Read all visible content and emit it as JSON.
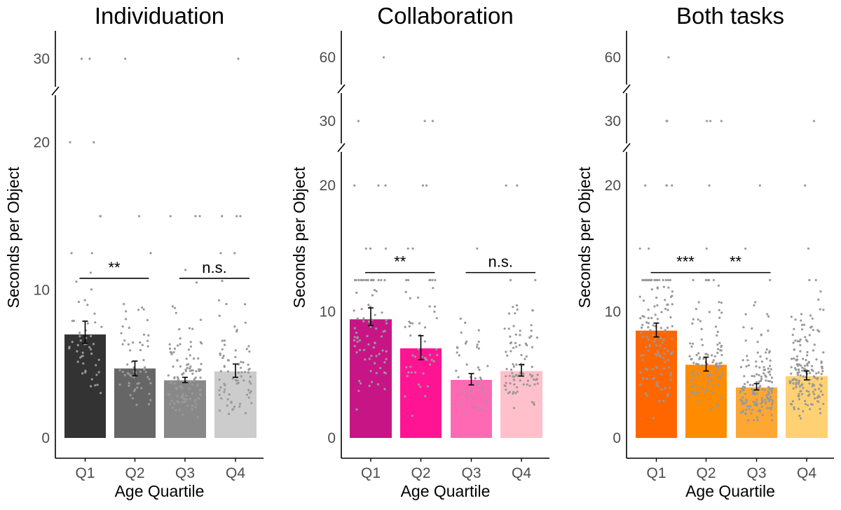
{
  "chart_data": [
    {
      "type": "bar",
      "title": "Individuation",
      "xlabel": "Age Quartile",
      "ylabel": "Seconds per Object",
      "categories": [
        "Q1",
        "Q2",
        "Q3",
        "Q4"
      ],
      "values": [
        7.0,
        4.7,
        3.9,
        4.5
      ],
      "error_low": [
        6.4,
        4.2,
        3.75,
        4.1
      ],
      "error_high": [
        7.9,
        5.2,
        4.1,
        5.0
      ],
      "colors": [
        "#333333",
        "#666666",
        "#888888",
        "#cccccc"
      ],
      "y_ticks": [
        "0",
        "10",
        "20",
        "30"
      ],
      "axis_break": {
        "lower_range": [
          0,
          23
        ],
        "upper_values": [
          30
        ]
      },
      "significance": [
        {
          "from": "Q1",
          "to": "Q2",
          "label": "**",
          "y": 10.8
        },
        {
          "from": "Q3",
          "to": "Q4",
          "label": "n.s.",
          "y": 10.8
        }
      ],
      "outliers": [
        [
          1,
          30
        ],
        [
          1,
          30
        ],
        [
          1,
          20
        ],
        [
          1,
          20
        ],
        [
          2,
          30
        ],
        [
          1,
          15
        ],
        [
          1,
          15
        ],
        [
          2,
          15
        ],
        [
          3,
          15
        ],
        [
          3,
          15
        ],
        [
          3,
          15
        ],
        [
          4,
          15
        ],
        [
          4,
          15
        ],
        [
          4,
          15
        ],
        [
          4,
          30
        ]
      ],
      "points_per_group": [
        50,
        60,
        120,
        80
      ]
    },
    {
      "type": "bar",
      "title": "Collaboration",
      "xlabel": "Age Quartile",
      "ylabel": "Seconds per Object",
      "categories": [
        "Q1",
        "Q2",
        "Q3",
        "Q4"
      ],
      "values": [
        9.4,
        7.1,
        4.6,
        5.3
      ],
      "error_low": [
        8.9,
        6.2,
        4.2,
        4.9
      ],
      "error_high": [
        10.3,
        8.1,
        5.1,
        5.8
      ],
      "colors": [
        "#c71585",
        "#ff1493",
        "#ff69b4",
        "#ffc0cb"
      ],
      "y_ticks": [
        "0",
        "10",
        "20",
        "30",
        "60"
      ],
      "axis_break": {
        "lower_range": [
          0,
          22.5
        ],
        "upper_values": [
          30,
          60
        ]
      },
      "significance": [
        {
          "from": "Q1",
          "to": "Q2",
          "label": "**",
          "y": 13.1
        },
        {
          "from": "Q3",
          "to": "Q4",
          "label": "n.s.",
          "y": 13.1
        }
      ],
      "outliers": [
        [
          1,
          60
        ],
        [
          1,
          30
        ],
        [
          2,
          30
        ],
        [
          2,
          30
        ],
        [
          1,
          20
        ],
        [
          1,
          20
        ],
        [
          1,
          20
        ],
        [
          2,
          20
        ],
        [
          2,
          20
        ],
        [
          4,
          20
        ],
        [
          4,
          20
        ],
        [
          1,
          15
        ],
        [
          1,
          15
        ],
        [
          1,
          15
        ],
        [
          2,
          15
        ],
        [
          2,
          15
        ],
        [
          3,
          15
        ]
      ],
      "points_per_group": [
        80,
        50,
        40,
        90
      ]
    },
    {
      "type": "bar",
      "title": "Both tasks",
      "xlabel": "Age Quartile",
      "ylabel": "Seconds per Object",
      "categories": [
        "Q1",
        "Q2",
        "Q3",
        "Q4"
      ],
      "values": [
        8.5,
        5.8,
        4.0,
        4.9
      ],
      "error_low": [
        8.0,
        5.3,
        3.8,
        4.6
      ],
      "error_high": [
        9.1,
        6.4,
        4.3,
        5.3
      ],
      "colors": [
        "#ff6600",
        "#ff8c00",
        "#ffa733",
        "#ffd173"
      ],
      "y_ticks": [
        "0",
        "10",
        "20",
        "30",
        "60"
      ],
      "axis_break": {
        "lower_range": [
          0,
          22.5
        ],
        "upper_values": [
          30,
          60
        ]
      },
      "significance": [
        {
          "from": "Q1",
          "to": "Q2",
          "label": "***",
          "y": 13.1
        },
        {
          "from": "Q2",
          "to": "Q3",
          "label": "**",
          "y": 13.1
        }
      ],
      "outliers": [
        [
          1,
          60
        ],
        [
          1,
          30
        ],
        [
          1,
          30
        ],
        [
          2,
          30
        ],
        [
          2,
          30
        ],
        [
          2,
          30
        ],
        [
          4,
          30
        ],
        [
          1,
          20
        ],
        [
          1,
          20
        ],
        [
          1,
          20
        ],
        [
          1,
          20
        ],
        [
          2,
          20
        ],
        [
          3,
          20
        ],
        [
          4,
          20
        ],
        [
          1,
          15
        ],
        [
          1,
          15
        ],
        [
          2,
          15
        ],
        [
          3,
          15
        ],
        [
          4,
          15
        ]
      ],
      "points_per_group": [
        130,
        110,
        160,
        170
      ]
    }
  ]
}
